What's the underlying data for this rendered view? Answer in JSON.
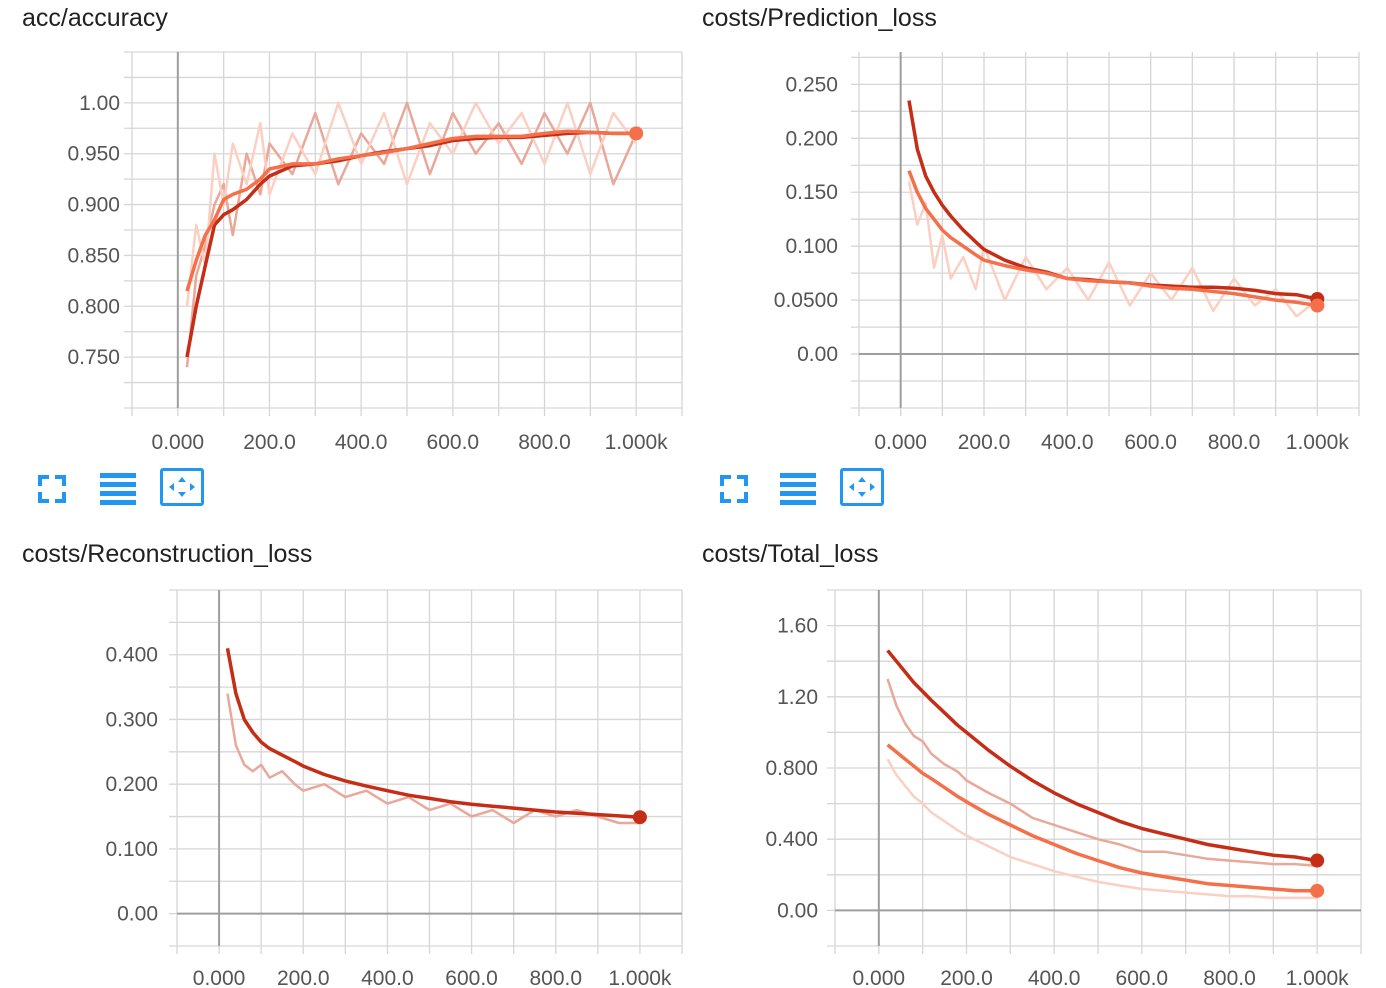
{
  "colors": {
    "grid": "#d6d6d6",
    "axis": "#9e9e9e",
    "accent": "#2196f3",
    "dark_red": "#c62d16",
    "orange": "#f4704a",
    "faint_dark": "#e8a89a",
    "faint_orange": "#fbd0c2"
  },
  "toolbar": {
    "expand_icon": "fullscreen-icon",
    "lines_icon": "toggle-log-scale-icon",
    "fit_icon": "fit-domain-icon"
  },
  "chart_data": [
    {
      "type": "line",
      "title": "acc/accuracy",
      "xlabel": "",
      "ylabel": "",
      "xlim": [
        -100,
        1100
      ],
      "ylim": [
        0.7,
        1.05
      ],
      "x_ticks": [
        0,
        200,
        400,
        600,
        800,
        1000
      ],
      "x_tick_labels": [
        "0.000",
        "200.0",
        "400.0",
        "600.0",
        "800.0",
        "1.000k"
      ],
      "y_ticks": [
        0.75,
        0.8,
        0.85,
        0.9,
        0.95,
        1.0
      ],
      "y_tick_labels": [
        "0.750",
        "0.800",
        "0.850",
        "0.900",
        "0.950",
        "1.00"
      ],
      "series": [
        {
          "color": "#c62d16",
          "faint_color": "#e8a89a",
          "marker": false,
          "x": [
            20,
            40,
            60,
            80,
            100,
            120,
            150,
            180,
            200,
            250,
            300,
            350,
            400,
            450,
            500,
            550,
            600,
            650,
            700,
            750,
            800,
            850,
            900,
            950,
            1000
          ],
          "values": [
            0.75,
            0.8,
            0.84,
            0.88,
            0.89,
            0.895,
            0.905,
            0.92,
            0.928,
            0.938,
            0.94,
            0.943,
            0.948,
            0.952,
            0.955,
            0.958,
            0.963,
            0.965,
            0.966,
            0.966,
            0.968,
            0.97,
            0.971,
            0.97,
            0.97
          ],
          "raw": [
            0.74,
            0.83,
            0.86,
            0.9,
            0.92,
            0.87,
            0.95,
            0.91,
            0.96,
            0.93,
            0.99,
            0.92,
            0.97,
            0.94,
            1.0,
            0.93,
            0.99,
            0.95,
            0.98,
            0.94,
            0.99,
            0.95,
            1.0,
            0.92,
            0.97
          ]
        },
        {
          "color": "#f4704a",
          "faint_color": "#fbd0c2",
          "marker": true,
          "x": [
            20,
            40,
            60,
            80,
            100,
            120,
            150,
            180,
            200,
            250,
            300,
            350,
            400,
            450,
            500,
            550,
            600,
            650,
            700,
            750,
            800,
            850,
            900,
            950,
            1000
          ],
          "values": [
            0.815,
            0.845,
            0.87,
            0.885,
            0.905,
            0.91,
            0.915,
            0.925,
            0.935,
            0.94,
            0.94,
            0.945,
            0.948,
            0.951,
            0.955,
            0.96,
            0.965,
            0.967,
            0.967,
            0.967,
            0.97,
            0.972,
            0.971,
            0.97,
            0.97
          ],
          "raw": [
            0.8,
            0.88,
            0.84,
            0.95,
            0.9,
            0.96,
            0.92,
            0.98,
            0.91,
            0.97,
            0.93,
            1.0,
            0.94,
            0.99,
            0.92,
            0.98,
            0.95,
            1.0,
            0.96,
            0.99,
            0.94,
            1.0,
            0.93,
            0.99,
            0.96
          ]
        }
      ]
    },
    {
      "type": "line",
      "title": "costs/Prediction_loss",
      "xlabel": "",
      "ylabel": "",
      "xlim": [
        -100,
        1100
      ],
      "ylim": [
        -0.05,
        0.28
      ],
      "x_ticks": [
        0,
        200,
        400,
        600,
        800,
        1000
      ],
      "x_tick_labels": [
        "0.000",
        "200.0",
        "400.0",
        "600.0",
        "800.0",
        "1.000k"
      ],
      "y_ticks": [
        0.0,
        0.05,
        0.1,
        0.15,
        0.2,
        0.25
      ],
      "y_tick_labels": [
        "0.00",
        "0.0500",
        "0.100",
        "0.150",
        "0.200",
        "0.250"
      ],
      "series": [
        {
          "color": "#c62d16",
          "faint_color": "#e8a89a",
          "marker": true,
          "x": [
            20,
            40,
            60,
            80,
            100,
            120,
            150,
            180,
            200,
            250,
            300,
            350,
            400,
            450,
            500,
            550,
            600,
            650,
            700,
            750,
            800,
            850,
            900,
            950,
            1000
          ],
          "values": [
            0.235,
            0.19,
            0.165,
            0.15,
            0.138,
            0.128,
            0.115,
            0.104,
            0.097,
            0.087,
            0.08,
            0.076,
            0.07,
            0.069,
            0.067,
            0.066,
            0.064,
            0.063,
            0.062,
            0.062,
            0.061,
            0.059,
            0.056,
            0.055,
            0.051
          ]
        },
        {
          "color": "#f4704a",
          "faint_color": "#fbd0c2",
          "marker": true,
          "x": [
            20,
            40,
            60,
            80,
            100,
            120,
            150,
            180,
            200,
            250,
            300,
            350,
            400,
            450,
            500,
            550,
            600,
            650,
            700,
            750,
            800,
            850,
            900,
            950,
            1000
          ],
          "values": [
            0.17,
            0.15,
            0.135,
            0.125,
            0.115,
            0.108,
            0.1,
            0.092,
            0.087,
            0.082,
            0.078,
            0.075,
            0.07,
            0.068,
            0.067,
            0.066,
            0.063,
            0.061,
            0.06,
            0.058,
            0.056,
            0.053,
            0.05,
            0.048,
            0.045
          ],
          "raw": [
            0.16,
            0.12,
            0.14,
            0.08,
            0.11,
            0.07,
            0.09,
            0.06,
            0.1,
            0.05,
            0.09,
            0.06,
            0.08,
            0.05,
            0.085,
            0.045,
            0.075,
            0.05,
            0.08,
            0.04,
            0.07,
            0.045,
            0.06,
            0.035,
            0.05
          ]
        }
      ]
    },
    {
      "type": "line",
      "title": "costs/Reconstruction_loss",
      "xlabel": "",
      "ylabel": "",
      "xlim": [
        -100,
        1100
      ],
      "ylim": [
        -0.05,
        0.5
      ],
      "x_ticks": [
        0,
        200,
        400,
        600,
        800,
        1000
      ],
      "x_tick_labels": [
        "0.000",
        "200.0",
        "400.0",
        "600.0",
        "800.0",
        "1.000k"
      ],
      "y_ticks": [
        0.0,
        0.1,
        0.2,
        0.3,
        0.4
      ],
      "y_tick_labels": [
        "0.00",
        "0.100",
        "0.200",
        "0.300",
        "0.400"
      ],
      "series": [
        {
          "color": "#c62d16",
          "faint_color": "#e8a89a",
          "marker": true,
          "x": [
            20,
            40,
            60,
            80,
            100,
            120,
            150,
            180,
            200,
            250,
            300,
            350,
            400,
            450,
            500,
            550,
            600,
            650,
            700,
            750,
            800,
            850,
            900,
            950,
            1000
          ],
          "values": [
            0.41,
            0.34,
            0.3,
            0.28,
            0.265,
            0.255,
            0.245,
            0.235,
            0.228,
            0.215,
            0.205,
            0.197,
            0.19,
            0.183,
            0.178,
            0.173,
            0.169,
            0.166,
            0.163,
            0.16,
            0.157,
            0.155,
            0.153,
            0.151,
            0.149
          ],
          "raw": [
            0.34,
            0.26,
            0.23,
            0.22,
            0.23,
            0.21,
            0.22,
            0.2,
            0.19,
            0.2,
            0.18,
            0.19,
            0.17,
            0.18,
            0.16,
            0.17,
            0.15,
            0.16,
            0.14,
            0.16,
            0.15,
            0.16,
            0.15,
            0.14,
            0.14
          ]
        }
      ]
    },
    {
      "type": "line",
      "title": "costs/Total_loss",
      "xlabel": "",
      "ylabel": "",
      "xlim": [
        -100,
        1100
      ],
      "ylim": [
        -0.2,
        1.8
      ],
      "x_ticks": [
        0,
        200,
        400,
        600,
        800,
        1000
      ],
      "x_tick_labels": [
        "0.000",
        "200.0",
        "400.0",
        "600.0",
        "800.0",
        "1.000k"
      ],
      "y_ticks": [
        0.0,
        0.4,
        0.8,
        1.2,
        1.6
      ],
      "y_tick_labels": [
        "0.00",
        "0.400",
        "0.800",
        "1.20",
        "1.60"
      ],
      "series": [
        {
          "color": "#c62d16",
          "faint_color": "#e8a89a",
          "marker": true,
          "x": [
            20,
            40,
            60,
            80,
            100,
            120,
            150,
            180,
            200,
            250,
            300,
            350,
            400,
            450,
            500,
            550,
            600,
            650,
            700,
            750,
            800,
            850,
            900,
            950,
            1000
          ],
          "values": [
            1.46,
            1.4,
            1.34,
            1.28,
            1.23,
            1.18,
            1.11,
            1.04,
            1.0,
            0.9,
            0.81,
            0.73,
            0.66,
            0.6,
            0.55,
            0.5,
            0.46,
            0.43,
            0.4,
            0.37,
            0.35,
            0.33,
            0.31,
            0.3,
            0.28
          ],
          "raw": [
            1.3,
            1.15,
            1.05,
            0.98,
            0.95,
            0.88,
            0.82,
            0.78,
            0.73,
            0.66,
            0.6,
            0.52,
            0.48,
            0.44,
            0.4,
            0.37,
            0.33,
            0.33,
            0.31,
            0.29,
            0.28,
            0.27,
            0.26,
            0.26,
            0.25
          ]
        },
        {
          "color": "#f4704a",
          "faint_color": "#fbd0c2",
          "marker": true,
          "x": [
            20,
            40,
            60,
            80,
            100,
            120,
            150,
            180,
            200,
            250,
            300,
            350,
            400,
            450,
            500,
            550,
            600,
            650,
            700,
            750,
            800,
            850,
            900,
            950,
            1000
          ],
          "values": [
            0.93,
            0.89,
            0.85,
            0.81,
            0.77,
            0.74,
            0.69,
            0.64,
            0.61,
            0.54,
            0.48,
            0.42,
            0.37,
            0.32,
            0.28,
            0.24,
            0.21,
            0.19,
            0.17,
            0.15,
            0.14,
            0.13,
            0.12,
            0.11,
            0.11
          ],
          "raw": [
            0.85,
            0.76,
            0.7,
            0.64,
            0.6,
            0.55,
            0.5,
            0.45,
            0.42,
            0.36,
            0.3,
            0.26,
            0.22,
            0.19,
            0.16,
            0.14,
            0.12,
            0.11,
            0.1,
            0.09,
            0.08,
            0.08,
            0.07,
            0.07,
            0.07
          ]
        }
      ]
    }
  ]
}
